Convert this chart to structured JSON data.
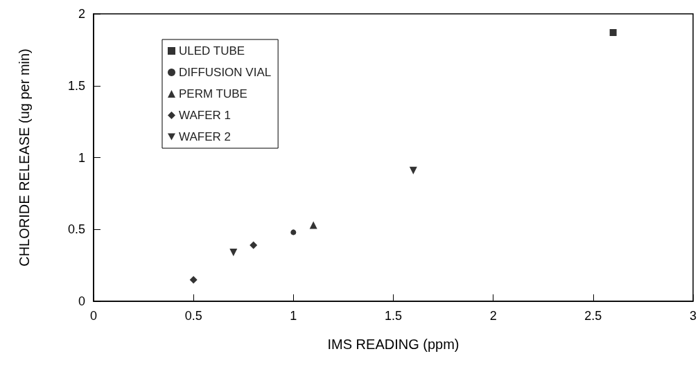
{
  "chart_data": {
    "type": "scatter",
    "xlabel": "IMS READING (ppm)",
    "ylabel": "CHLORIDE RELEASE (ug per min)",
    "xlim": [
      0,
      3
    ],
    "xticks": [
      0,
      0.5,
      1,
      1.5,
      2,
      2.5,
      3
    ],
    "ylim": [
      0,
      2
    ],
    "yticks": [
      0,
      0.5,
      1,
      1.5,
      2
    ],
    "grid": false,
    "legend": "top left",
    "series": [
      {
        "name": "ULED TUBE",
        "color": "#000000",
        "marker": "square",
        "x": [
          2.6
        ],
        "values": [
          1.87
        ]
      },
      {
        "name": "DIFFUSION VIAL",
        "color": "#000000",
        "marker": "circle",
        "x": [
          1.0
        ],
        "values": [
          0.48
        ]
      },
      {
        "name": "PERM TUBE",
        "color": "#000000",
        "marker": "triangle",
        "x": [
          1.1
        ],
        "values": [
          0.53
        ]
      },
      {
        "name": "WAFER 1",
        "color": "#000000",
        "marker": "diamond",
        "x": [
          0.5,
          0.8
        ],
        "values": [
          0.15,
          0.39
        ]
      },
      {
        "name": "WAFER 2",
        "color": "#000000",
        "marker": "triangle-down",
        "x": [
          0.7,
          1.6
        ],
        "values": [
          0.34,
          0.91
        ]
      }
    ]
  }
}
